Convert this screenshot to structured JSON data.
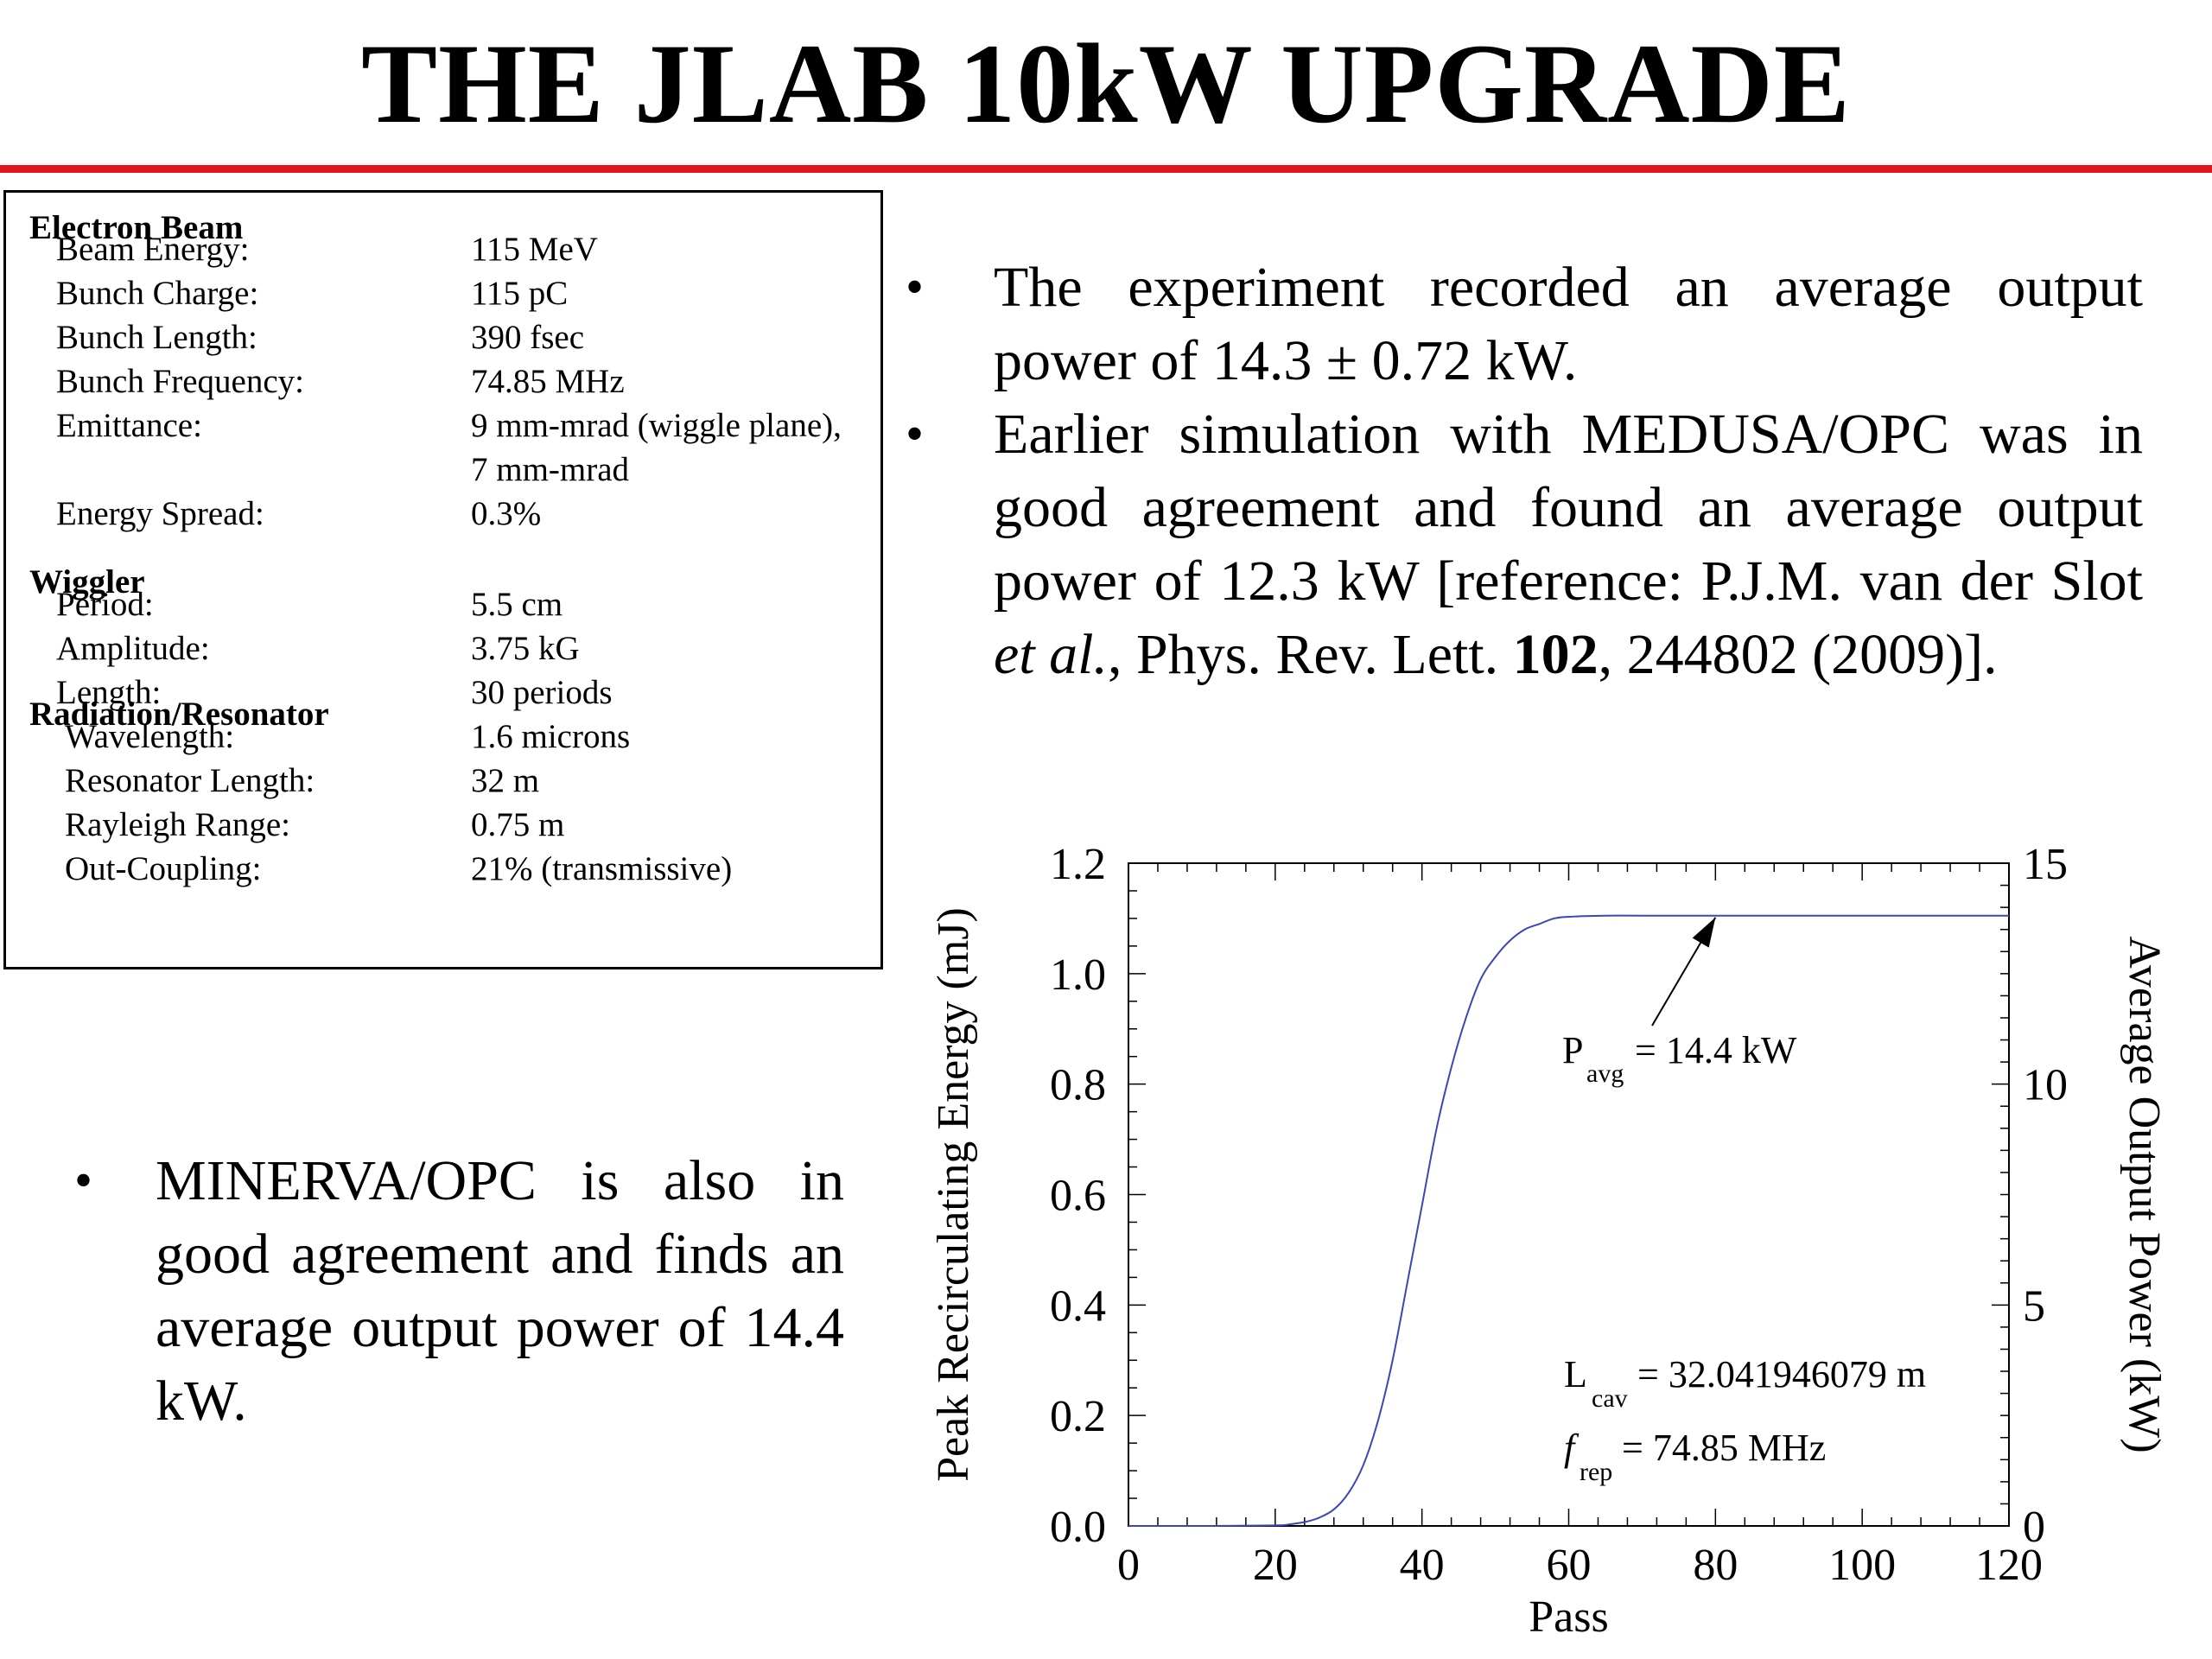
{
  "title": "THE JLAB 10kW UPGRADE",
  "colors": {
    "rule": "#e0141b",
    "curve": "#3b46b8"
  },
  "params": {
    "electron_beam": {
      "heading": "Electron Beam",
      "rows": [
        {
          "label": "Beam Energy:",
          "value": "115 MeV"
        },
        {
          "label": "Bunch Charge:",
          "value": "115 pC"
        },
        {
          "label": "Bunch Length:",
          "value": "390 fsec"
        },
        {
          "label": "Bunch Frequency:",
          "value": "74.85 MHz"
        },
        {
          "label": "Emittance:",
          "value": "9 mm-mrad (wiggle plane),"
        },
        {
          "label": "",
          "value": "7 mm-mrad"
        },
        {
          "label": "Energy Spread:",
          "value": "0.3%"
        }
      ]
    },
    "wiggler": {
      "heading": "Wiggler",
      "rows": [
        {
          "label": "Period:",
          "value": "5.5 cm"
        },
        {
          "label": "Amplitude:",
          "value": "3.75 kG"
        },
        {
          "label": "Length:",
          "value": "30 periods"
        }
      ]
    },
    "radiation": {
      "heading": "Radiation/Resonator",
      "rows": [
        {
          "label": "Wavelength:",
          "value": "1.6 microns"
        },
        {
          "label": "Resonator Length:",
          "value": "32 m"
        },
        {
          "label": "Rayleigh Range:",
          "value": "0.75 m"
        },
        {
          "label": "Out-Coupling:",
          "value": "21% (transmissive)"
        }
      ]
    }
  },
  "bullets": {
    "b1": "The experiment recorded an average output power of 14.3 ± 0.72 kW.",
    "b2_pre": "Earlier simulation with MEDUSA/OPC was in good agreement and found an average output power of 12.3 kW [reference: P.J.M. van der Slot ",
    "b2_em": "et al.",
    "b2_mid": ", Phys. Rev. Lett. ",
    "b2_bold": "102",
    "b2_post": ", 244802 (2009)].",
    "b3": "MINERVA/OPC is also in good agreement and finds an average output power of 14.4 kW."
  },
  "chart_data": {
    "type": "line",
    "xlabel": "Pass",
    "ylabel": "Peak Recirculating Energy (mJ)",
    "y2label": "Average Output Power (kW)",
    "xlim": [
      0,
      120
    ],
    "ylim": [
      0,
      1.2
    ],
    "y2lim": [
      0,
      15
    ],
    "xticks": [
      "0",
      "20",
      "40",
      "60",
      "80",
      "100",
      "120"
    ],
    "yticks": [
      "0.0",
      "0.2",
      "0.4",
      "0.6",
      "0.8",
      "1.0",
      "1.2"
    ],
    "y2ticks": [
      "0",
      "5",
      "10",
      "15"
    ],
    "series": [
      {
        "x": [
          0,
          10,
          20,
          22,
          24,
          26,
          28,
          30,
          32,
          34,
          36,
          38,
          40,
          42,
          44,
          46,
          48,
          50,
          52,
          54,
          56,
          58,
          60,
          65,
          70,
          80,
          90,
          100,
          110,
          120
        ],
        "y": [
          0,
          0,
          0.001,
          0.003,
          0.007,
          0.015,
          0.03,
          0.06,
          0.11,
          0.19,
          0.3,
          0.44,
          0.58,
          0.72,
          0.83,
          0.92,
          0.99,
          1.03,
          1.06,
          1.08,
          1.09,
          1.1,
          1.103,
          1.105,
          1.105,
          1.105,
          1.105,
          1.105,
          1.105,
          1.105
        ]
      }
    ],
    "annotations": {
      "pavg_sym": "P",
      "pavg_sub": "avg",
      "pavg_val": "= 14.4 kW",
      "arrow_x": 80,
      "arrow_y": 1.105,
      "lcav_sym": "L",
      "lcav_sub": "cav",
      "lcav_val": "= 32.041946079 m",
      "frep_sym": "f",
      "frep_sub": "rep",
      "frep_val": "= 74.85 MHz"
    }
  }
}
